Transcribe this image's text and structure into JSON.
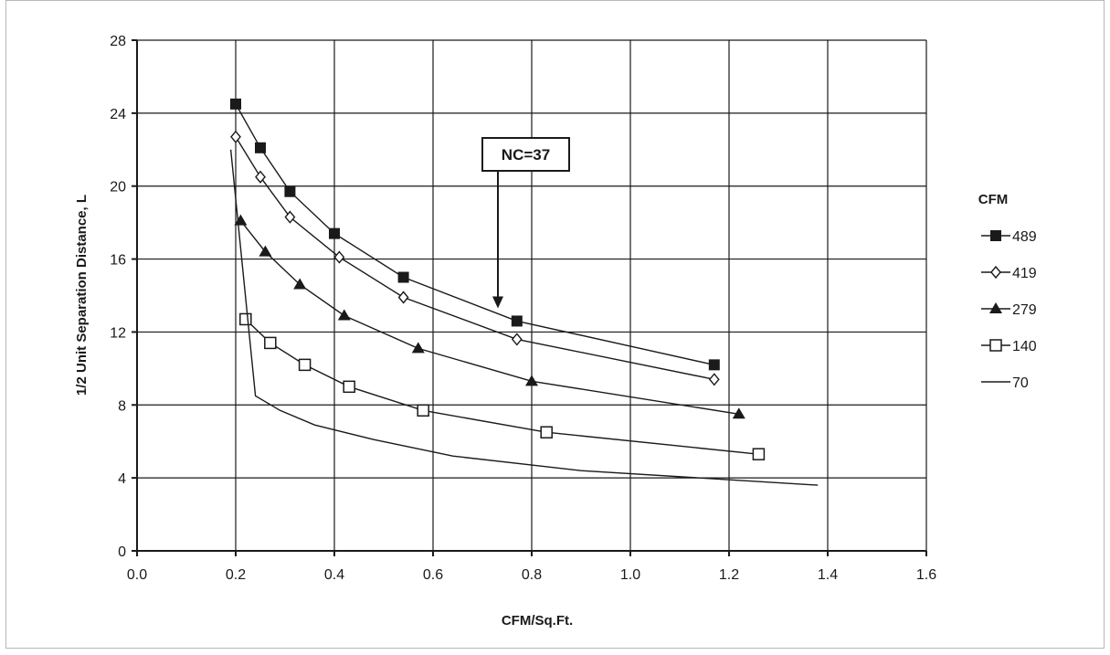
{
  "chart_data": {
    "type": "line",
    "xlabel": "CFM/Sq.Ft.",
    "ylabel": "1/2 Unit Separation Distance, L",
    "xlim": [
      0.0,
      1.6
    ],
    "ylim": [
      0,
      28
    ],
    "xticks": [
      "0.0",
      "0.2",
      "0.4",
      "0.6",
      "0.8",
      "1.0",
      "1.2",
      "1.4",
      "1.6"
    ],
    "yticks": [
      "0",
      "4",
      "8",
      "12",
      "16",
      "20",
      "24",
      "28"
    ],
    "grid": true,
    "legend_title": "CFM",
    "legend_position": "right",
    "series": [
      {
        "name": "489",
        "marker": "filled-square",
        "x": [
          0.2,
          0.25,
          0.31,
          0.4,
          0.54,
          0.77,
          1.17
        ],
        "y": [
          24.5,
          22.1,
          19.7,
          17.4,
          15.0,
          12.6,
          10.2
        ]
      },
      {
        "name": "419",
        "marker": "open-diamond",
        "x": [
          0.2,
          0.25,
          0.31,
          0.41,
          0.54,
          0.77,
          1.17
        ],
        "y": [
          22.7,
          20.5,
          18.3,
          16.1,
          13.9,
          11.6,
          9.4
        ]
      },
      {
        "name": "279",
        "marker": "filled-triangle",
        "x": [
          0.21,
          0.26,
          0.33,
          0.42,
          0.57,
          0.8,
          1.22
        ],
        "y": [
          18.1,
          16.4,
          14.6,
          12.9,
          11.1,
          9.3,
          7.5
        ]
      },
      {
        "name": "140",
        "marker": "open-square",
        "x": [
          0.22,
          0.27,
          0.34,
          0.43,
          0.58,
          0.83,
          1.26
        ],
        "y": [
          12.7,
          11.4,
          10.2,
          9.0,
          7.7,
          6.5,
          5.3
        ]
      },
      {
        "name": "70",
        "marker": "none",
        "x": [
          0.19,
          0.24,
          0.29,
          0.36,
          0.48,
          0.64,
          0.9,
          1.38
        ],
        "y": [
          22.0,
          8.5,
          7.7,
          6.9,
          6.1,
          5.2,
          4.4,
          3.6
        ]
      }
    ],
    "annotation": {
      "text": "NC=37",
      "points_to": {
        "x": 0.73,
        "y": 13.3
      }
    }
  }
}
